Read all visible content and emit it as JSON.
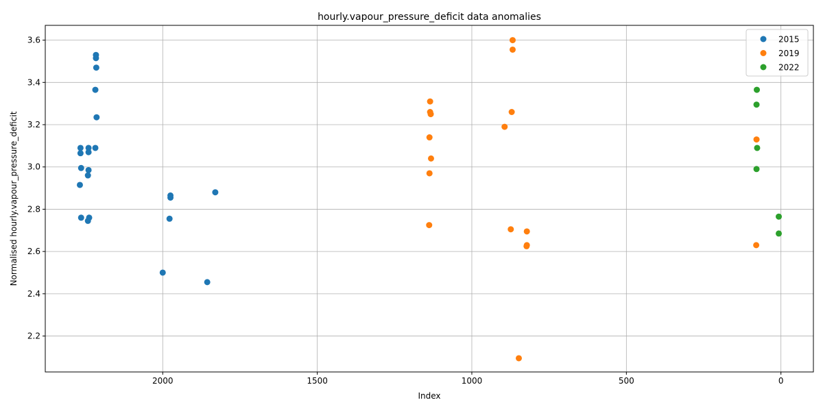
{
  "chart_data": {
    "type": "scatter",
    "title": "hourly.vapour_pressure_deficit data anomalies",
    "xlabel": "Index",
    "ylabel": "Normalised hourly.vapour_pressure_deficit",
    "xlim": [
      2380,
      -105
    ],
    "ylim": [
      2.03,
      3.67
    ],
    "x_inverted": true,
    "grid": true,
    "legend_position": "top-right",
    "xticks": [
      2000,
      1500,
      1000,
      500,
      0
    ],
    "yticks": [
      2.2,
      2.4,
      2.6,
      2.8,
      3.0,
      3.2,
      3.4,
      3.6
    ],
    "colors": {
      "2015": "#1f77b4",
      "2019": "#ff7f0e",
      "2022": "#2ca02c"
    },
    "series": [
      {
        "name": "2015",
        "color": "#1f77b4",
        "points": [
          [
            2216,
            3.53
          ],
          [
            2216,
            3.515
          ],
          [
            2215,
            3.47
          ],
          [
            2218,
            3.365
          ],
          [
            2214,
            3.235
          ],
          [
            2266,
            3.09
          ],
          [
            2266,
            3.065
          ],
          [
            2240,
            3.09
          ],
          [
            2240,
            3.07
          ],
          [
            2218,
            3.09
          ],
          [
            2264,
            2.995
          ],
          [
            2240,
            2.985
          ],
          [
            2242,
            2.96
          ],
          [
            2268,
            2.915
          ],
          [
            2264,
            2.76
          ],
          [
            2238,
            2.76
          ],
          [
            2242,
            2.745
          ],
          [
            1975,
            2.865
          ],
          [
            1975,
            2.855
          ],
          [
            1978,
            2.755
          ],
          [
            1830,
            2.88
          ],
          [
            2000,
            2.5
          ],
          [
            1856,
            2.455
          ]
        ]
      },
      {
        "name": "2019",
        "color": "#ff7f0e",
        "points": [
          [
            868,
            3.6
          ],
          [
            868,
            3.555
          ],
          [
            1135,
            3.31
          ],
          [
            1135,
            3.26
          ],
          [
            1133,
            3.25
          ],
          [
            871,
            3.26
          ],
          [
            894,
            3.19
          ],
          [
            1137,
            3.14
          ],
          [
            1132,
            3.04
          ],
          [
            1137,
            2.97
          ],
          [
            1138,
            2.725
          ],
          [
            874,
            2.705
          ],
          [
            822,
            2.695
          ],
          [
            822,
            2.63
          ],
          [
            823,
            2.625
          ],
          [
            79,
            3.13
          ],
          [
            80,
            2.63
          ],
          [
            848,
            2.095
          ]
        ]
      },
      {
        "name": "2022",
        "color": "#2ca02c",
        "points": [
          [
            78,
            3.365
          ],
          [
            79,
            3.295
          ],
          [
            77,
            3.09
          ],
          [
            79,
            2.99
          ],
          [
            7,
            2.765
          ],
          [
            7,
            2.685
          ]
        ]
      }
    ]
  }
}
